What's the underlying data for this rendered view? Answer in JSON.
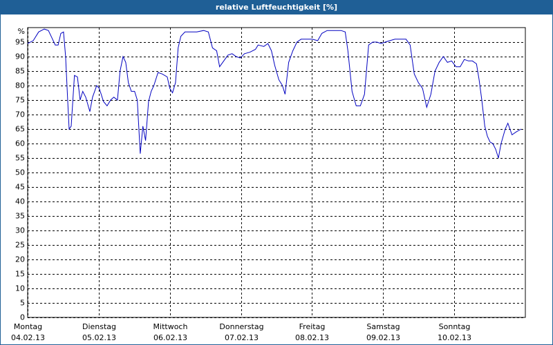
{
  "chart_data": {
    "type": "line",
    "title": "relative Luftfeuchtigkeit [%]",
    "y_unit": "%",
    "xlim": [
      0,
      168
    ],
    "xticks": [
      0,
      24,
      48,
      72,
      96,
      120,
      144
    ],
    "xtick_days": [
      "Montag",
      "Dienstag",
      "Mittwoch",
      "Donnerstag",
      "Freitag",
      "Samstag",
      "Sonntag"
    ],
    "xtick_dates": [
      "04.02.13",
      "05.02.13",
      "06.02.13",
      "07.02.13",
      "08.02.13",
      "09.02.13",
      "10.02.13"
    ],
    "ylim": [
      0,
      100
    ],
    "yticks": [
      0,
      5,
      10,
      15,
      20,
      25,
      30,
      35,
      40,
      45,
      50,
      55,
      60,
      65,
      70,
      75,
      80,
      85,
      90,
      95
    ],
    "grid": true,
    "x": [
      0,
      1.9,
      3.7,
      5.6,
      7.0,
      8.4,
      9.3,
      10.3,
      11.2,
      12.1,
      12.8,
      13.5,
      14.0,
      14.7,
      15.8,
      16.8,
      17.7,
      18.6,
      19.6,
      21.0,
      21.9,
      23.3,
      24.2,
      25.6,
      26.8,
      28.0,
      29.1,
      30.3,
      31.2,
      32.2,
      33.1,
      34.0,
      35.0,
      36.1,
      37.0,
      38.0,
      38.9,
      39.8,
      40.8,
      41.7,
      42.6,
      44.0,
      45.4,
      47.1,
      48.0,
      48.9,
      49.9,
      50.8,
      51.7,
      53.1,
      54.8,
      57.1,
      59.4,
      61.0,
      62.4,
      63.8,
      64.8,
      66.2,
      67.6,
      69.0,
      70.4,
      71.8,
      73.2,
      75.0,
      76.9,
      77.8,
      79.7,
      81.1,
      82.3,
      83.4,
      84.8,
      86.0,
      86.9,
      88.1,
      89.5,
      90.9,
      92.3,
      94.1,
      96.0,
      97.9,
      99.3,
      101.1,
      103.5,
      105.8,
      107.2,
      108.1,
      109.5,
      110.9,
      112.3,
      113.7,
      115.1,
      116.5,
      117.9,
      119.3,
      120.7,
      122.3,
      124.0,
      125.8,
      127.7,
      129.1,
      130.5,
      131.9,
      133.3,
      134.7,
      136.1,
      137.5,
      138.9,
      140.3,
      141.7,
      143.1,
      144.6,
      146.0,
      147.4,
      148.8,
      150.1,
      151.5,
      152.4,
      153.3,
      154.3,
      155.2,
      156.1,
      157.0,
      158.0,
      158.9,
      159.8,
      161.2,
      162.1,
      163.5,
      164.9,
      166.6
    ],
    "series": [
      {
        "color": "#0000c0",
        "values": [
          94.5,
          95.5,
          98.5,
          99.5,
          99,
          96,
          94,
          94,
          98,
          98.5,
          90,
          75,
          65,
          66,
          83.5,
          83,
          75,
          78,
          76,
          71,
          76,
          80,
          79,
          74.5,
          73,
          75,
          76,
          75,
          85,
          90,
          88,
          81,
          78,
          78,
          75,
          56.5,
          66,
          61,
          74.5,
          78,
          80,
          84.5,
          84,
          83,
          79,
          77.5,
          81,
          93,
          97,
          98.5,
          98.5,
          98.5,
          99,
          98.5,
          93,
          92,
          86.5,
          88.5,
          90.5,
          91,
          90,
          89.5,
          91,
          91.5,
          92.5,
          94,
          93.5,
          94.5,
          92,
          87,
          82,
          80,
          77,
          88,
          92,
          95,
          96,
          96,
          96,
          95.5,
          98,
          99,
          99,
          99,
          98.5,
          92,
          78,
          73,
          73,
          77,
          94,
          95,
          95,
          94.5,
          95,
          95.5,
          96,
          96,
          96,
          94,
          84,
          81,
          79,
          72.5,
          77,
          85,
          88,
          90,
          88,
          88.5,
          86.5,
          86.5,
          89,
          88.5,
          88.5,
          87.5,
          82,
          75,
          66,
          62.5,
          60.5,
          60,
          58,
          55,
          60,
          65,
          67,
          63,
          64,
          65
        ]
      }
    ]
  }
}
